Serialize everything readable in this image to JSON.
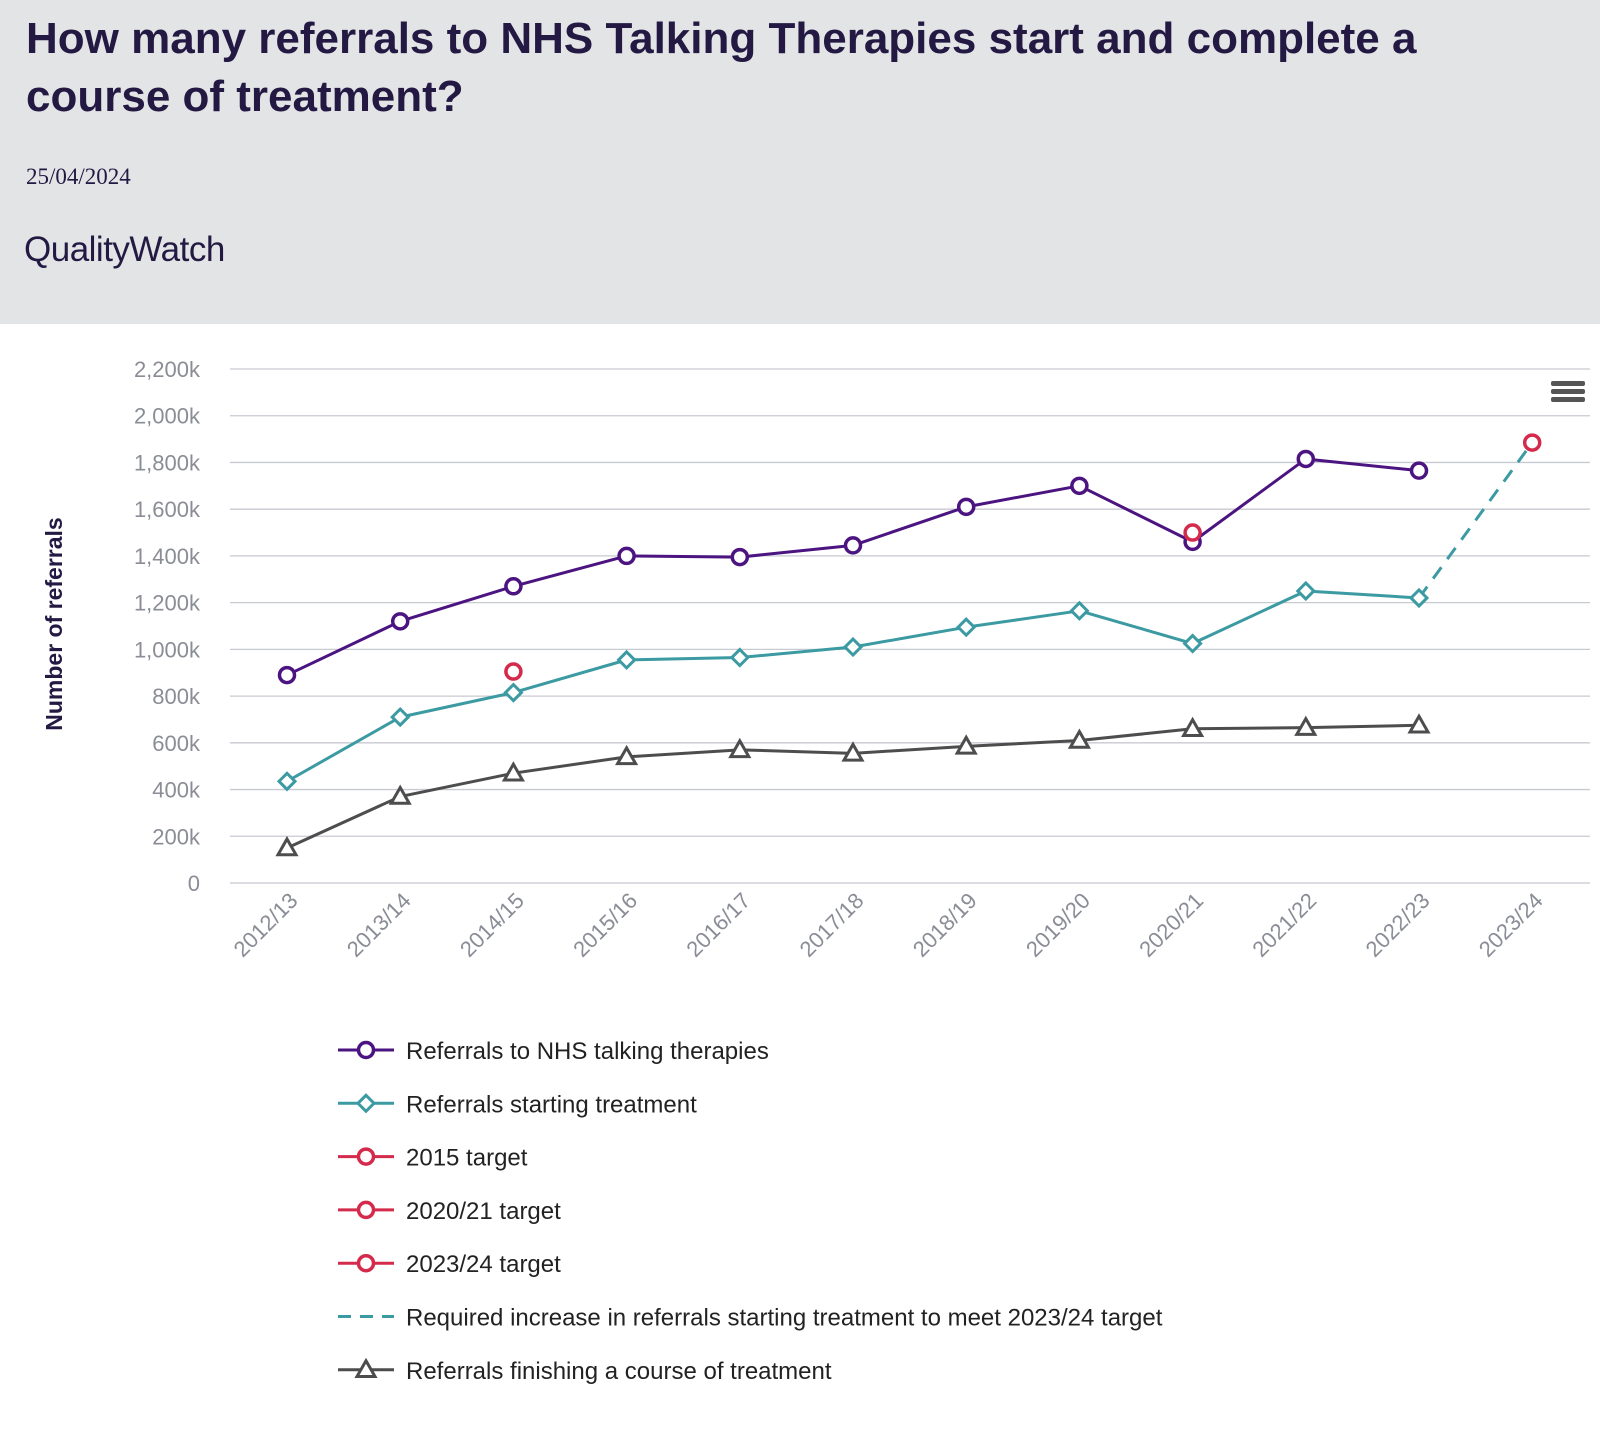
{
  "header": {
    "title": "How many referrals to NHS Talking Therapies start and complete a course of treatment?",
    "date": "25/04/2024",
    "brand": "QualityWatch"
  },
  "menu": {
    "icon": "hamburger-menu-icon"
  },
  "chart_data": {
    "type": "line",
    "ylabel": "Number of referrals",
    "ylim": [
      0,
      2200000
    ],
    "yticks": [
      0,
      200000,
      400000,
      600000,
      800000,
      1000000,
      1200000,
      1400000,
      1600000,
      1800000,
      2000000,
      2200000
    ],
    "ytick_labels": [
      "0",
      "200k",
      "400k",
      "600k",
      "800k",
      "1,000k",
      "1,200k",
      "1,400k",
      "1,600k",
      "1,800k",
      "2,000k",
      "2,200k"
    ],
    "categories": [
      "2012/13",
      "2013/14",
      "2014/15",
      "2015/16",
      "2016/17",
      "2017/18",
      "2018/19",
      "2019/20",
      "2020/21",
      "2021/22",
      "2022/23",
      "2023/24"
    ],
    "grid": true,
    "legend_position": "bottom",
    "series": [
      {
        "name": "Referrals to NHS talking therapies",
        "color": "#4b1480",
        "marker": "circle",
        "dash": false,
        "values": [
          890000,
          1120000,
          1270000,
          1400000,
          1395000,
          1445000,
          1610000,
          1700000,
          1460000,
          1815000,
          1765000,
          null
        ]
      },
      {
        "name": "Referrals starting treatment",
        "color": "#3b9aa2",
        "marker": "diamond",
        "dash": false,
        "values": [
          435000,
          710000,
          815000,
          955000,
          965000,
          1010000,
          1095000,
          1165000,
          1025000,
          1250000,
          1220000,
          null
        ]
      },
      {
        "name": "2015 target",
        "color": "#d42a4b",
        "marker": "circle",
        "dash": false,
        "values": [
          null,
          null,
          905000,
          null,
          null,
          null,
          null,
          null,
          null,
          null,
          null,
          null
        ]
      },
      {
        "name": "2020/21 target",
        "color": "#d42a4b",
        "marker": "circle",
        "dash": false,
        "values": [
          null,
          null,
          null,
          null,
          null,
          null,
          null,
          null,
          1500000,
          null,
          null,
          null
        ]
      },
      {
        "name": "2023/24 target",
        "color": "#d42a4b",
        "marker": "circle",
        "dash": false,
        "values": [
          null,
          null,
          null,
          null,
          null,
          null,
          null,
          null,
          null,
          null,
          null,
          1885000
        ]
      },
      {
        "name": "Required increase in referrals starting treatment to meet 2023/24 target",
        "color": "#3b9aa2",
        "marker": "none",
        "dash": true,
        "values": [
          null,
          null,
          null,
          null,
          null,
          null,
          null,
          null,
          null,
          null,
          1220000,
          1885000
        ]
      },
      {
        "name": "Referrals finishing a course of treatment",
        "color": "#4d4d4d",
        "marker": "triangle",
        "dash": false,
        "values": [
          150000,
          370000,
          470000,
          540000,
          570000,
          555000,
          585000,
          610000,
          660000,
          665000,
          675000,
          null
        ]
      }
    ]
  }
}
